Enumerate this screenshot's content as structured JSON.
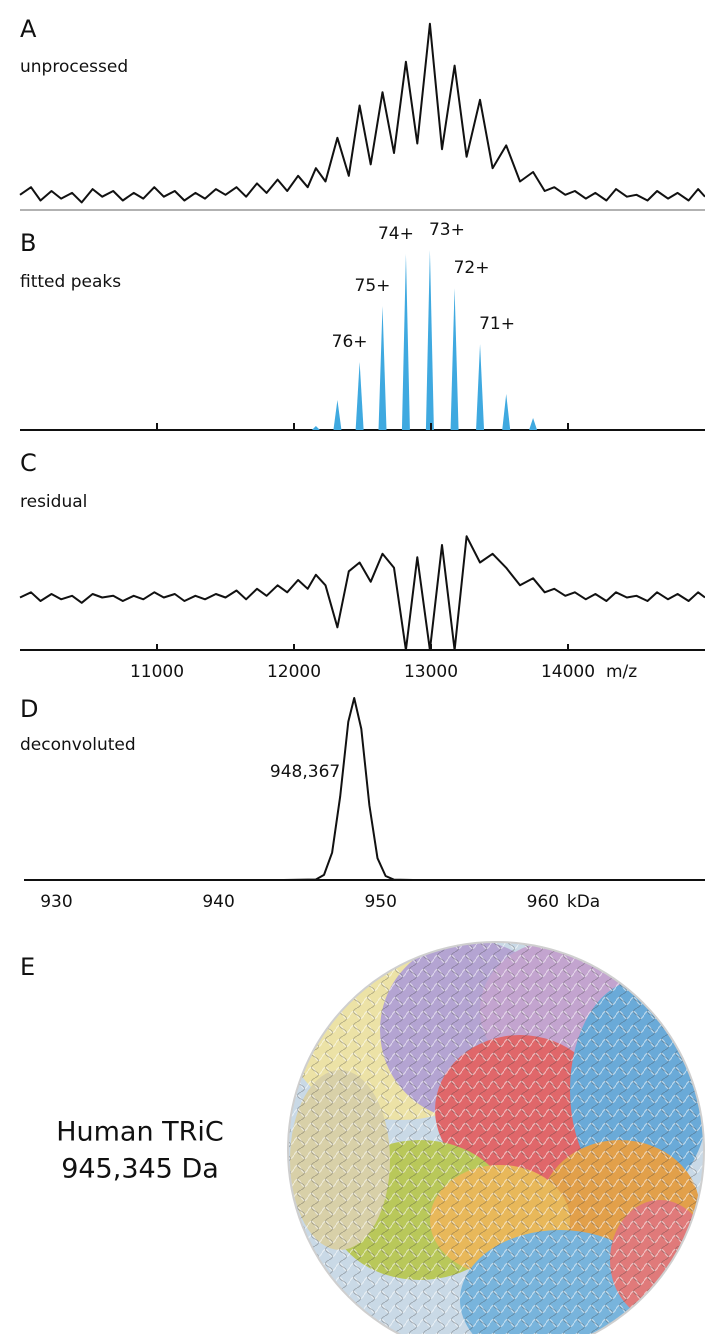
{
  "chart_data": [
    {
      "type": "line",
      "panel": "A",
      "title": "unprocessed",
      "color": "#111111",
      "x": [
        10000,
        10080,
        10150,
        10230,
        10300,
        10380,
        10450,
        10530,
        10600,
        10680,
        10750,
        10830,
        10900,
        10980,
        11050,
        11130,
        11200,
        11280,
        11350,
        11430,
        11500,
        11580,
        11650,
        11730,
        11800,
        11880,
        11950,
        12030,
        12100,
        12160,
        12230,
        12317,
        12400,
        12479,
        12560,
        12646,
        12730,
        12817,
        12900,
        12992,
        13080,
        13172,
        13260,
        13358,
        13450,
        13549,
        13650,
        13745,
        13830,
        13900,
        13980,
        14050,
        14130,
        14200,
        14280,
        14350,
        14430,
        14500,
        14580,
        14650,
        14730,
        14800,
        14880,
        14950,
        15000
      ],
      "values": [
        8,
        12,
        5,
        10,
        6,
        9,
        4,
        11,
        7,
        10,
        5,
        9,
        6,
        12,
        7,
        10,
        5,
        9,
        6,
        11,
        8,
        12,
        7,
        14,
        9,
        16,
        10,
        18,
        12,
        22,
        15,
        38,
        18,
        55,
        24,
        62,
        30,
        78,
        35,
        98,
        32,
        76,
        28,
        58,
        22,
        34,
        15,
        20,
        10,
        12,
        8,
        10,
        6,
        9,
        5,
        11,
        7,
        8,
        5,
        10,
        6,
        9,
        5,
        11,
        7
      ],
      "xlim": [
        10000,
        15000
      ],
      "ylim": [
        0,
        100
      ]
    },
    {
      "type": "bar",
      "panel": "B",
      "title": "fitted peaks",
      "color": "#3fa9e0",
      "x": [
        12160,
        12317,
        12479,
        12646,
        12817,
        12992,
        13172,
        13358,
        13549,
        13745
      ],
      "values": [
        2,
        15,
        34,
        62,
        88,
        90,
        71,
        43,
        18,
        6
      ],
      "charges": [
        null,
        null,
        "76+",
        "75+",
        "74+",
        "73+",
        "72+",
        "71+",
        null,
        null
      ],
      "xlim": [
        10000,
        15000
      ],
      "ylim": [
        0,
        100
      ]
    },
    {
      "type": "line",
      "panel": "C",
      "title": "residual",
      "color": "#111111",
      "x": [
        10000,
        10080,
        10150,
        10230,
        10300,
        10380,
        10450,
        10530,
        10600,
        10680,
        10750,
        10830,
        10900,
        10980,
        11050,
        11130,
        11200,
        11280,
        11350,
        11430,
        11500,
        11580,
        11650,
        11730,
        11800,
        11880,
        11950,
        12030,
        12100,
        12160,
        12230,
        12317,
        12400,
        12479,
        12560,
        12646,
        12730,
        12817,
        12900,
        12992,
        13080,
        13172,
        13260,
        13358,
        13450,
        13549,
        13650,
        13745,
        13830,
        13900,
        13980,
        14050,
        14130,
        14200,
        14280,
        14350,
        14430,
        14500,
        14580,
        14650,
        14730,
        14800,
        14880,
        14950,
        15000
      ],
      "values": [
        5,
        8,
        3,
        7,
        4,
        6,
        2,
        7,
        5,
        6,
        3,
        6,
        4,
        8,
        5,
        7,
        3,
        6,
        4,
        7,
        5,
        9,
        4,
        10,
        6,
        12,
        8,
        15,
        10,
        18,
        12,
        -12,
        20,
        25,
        14,
        30,
        22,
        -25,
        28,
        -25,
        35,
        -25,
        40,
        25,
        30,
        22,
        12,
        16,
        8,
        10,
        6,
        8,
        4,
        7,
        3,
        8,
        5,
        6,
        3,
        8,
        4,
        7,
        3,
        8,
        5
      ],
      "xlim": [
        10000,
        15000
      ],
      "ylim": [
        -25,
        55
      ],
      "xticks": [
        11000,
        12000,
        13000,
        14000
      ],
      "xlabel": "m/z"
    },
    {
      "type": "line",
      "panel": "D",
      "title": "deconvoluted",
      "color": "#111111",
      "x": [
        928,
        944,
        946,
        946.5,
        947,
        947.5,
        948,
        948.367,
        948.8,
        949.3,
        949.8,
        950.3,
        950.8,
        952,
        970
      ],
      "values": [
        0,
        0,
        0.3,
        2.8,
        15,
        46,
        87,
        100,
        83,
        41,
        12,
        2.2,
        0.2,
        0,
        0
      ],
      "annotation": "948,367",
      "xlim": [
        928,
        970
      ],
      "ylim": [
        0,
        100
      ],
      "xticks": [
        930,
        940,
        950,
        960
      ],
      "xlabel": "kDa"
    }
  ],
  "panel_e": {
    "panel": "E",
    "name": "Human TRiC",
    "mass": "945,345 Da"
  }
}
